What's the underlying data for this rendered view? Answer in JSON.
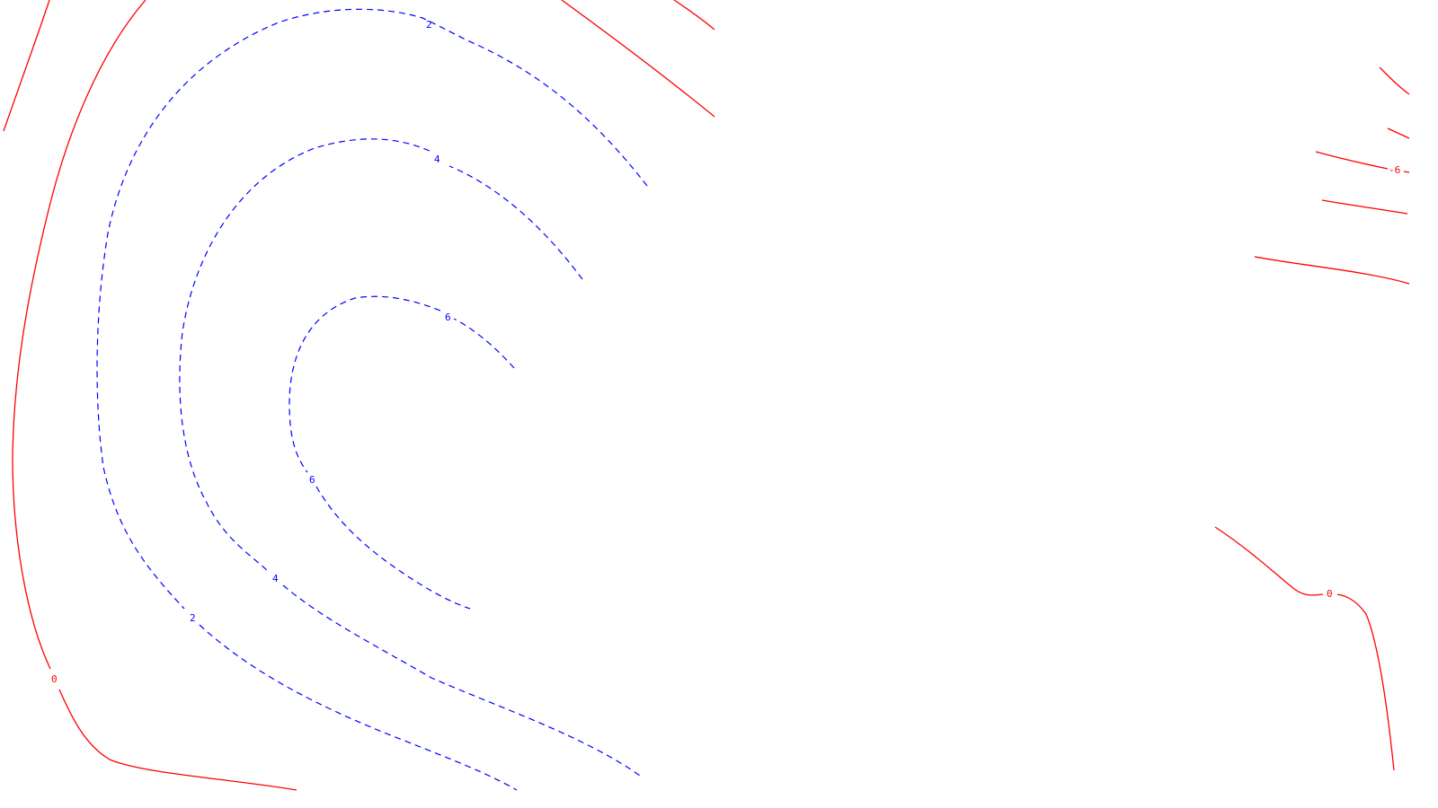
{
  "colors": {
    "background": "#ffffff",
    "zero_and_negative_contours": "#ff0000",
    "positive_contours": "#0000ff"
  },
  "contour_labels": {
    "zero_left": "0",
    "zero_right": "0",
    "neg_six_right": "-6",
    "pos_two_top": "2",
    "pos_two_bottom": "2",
    "pos_four_top": "4",
    "pos_four_bottom": "4",
    "pos_six_top": "6",
    "pos_six_bottom": "6"
  }
}
